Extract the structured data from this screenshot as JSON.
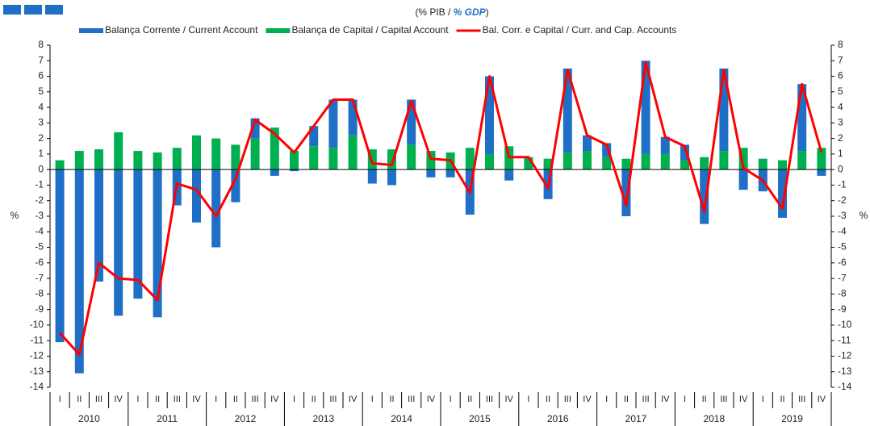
{
  "chart_data": {
    "type": "bar",
    "stacked": true,
    "title": [
      "(% PIB / ",
      "% GDP",
      ")"
    ],
    "ylabel": "%",
    "y2label": "%",
    "categories": [
      "I",
      "II",
      "III",
      "IV",
      "I",
      "II",
      "III",
      "IV",
      "I",
      "II",
      "III",
      "IV",
      "I",
      "II",
      "III",
      "IV",
      "I",
      "II",
      "III",
      "IV",
      "I",
      "II",
      "III",
      "IV",
      "I",
      "II",
      "III",
      "IV",
      "I",
      "II",
      "III",
      "IV",
      "I",
      "II",
      "III",
      "IV",
      "I",
      "II",
      "III",
      "IV"
    ],
    "years": [
      "2010",
      "2011",
      "2012",
      "2013",
      "2014",
      "2015",
      "2016",
      "2017",
      "2018",
      "2019"
    ],
    "series": [
      {
        "name": "Balança Corrente / Current Account",
        "type": "bar",
        "color": "#1f6fc6",
        "values": [
          -11.1,
          -13.1,
          -7.2,
          -9.4,
          -8.3,
          -9.5,
          -2.3,
          -3.4,
          -5.0,
          -2.1,
          1.3,
          -0.4,
          -0.1,
          1.3,
          3.1,
          2.3,
          -0.9,
          -1.0,
          2.9,
          -0.5,
          -0.5,
          -2.9,
          5.0,
          -0.7,
          0.0,
          -1.9,
          5.4,
          1.0,
          0.9,
          -3.0,
          6.0,
          1.1,
          1.0,
          -3.5,
          5.3,
          -1.3,
          -1.4,
          -3.1,
          4.3,
          -0.4
        ]
      },
      {
        "name": "Balança de Capital / Capital Account",
        "type": "bar",
        "color": "#00b050",
        "values": [
          0.6,
          1.2,
          1.3,
          2.4,
          1.2,
          1.1,
          1.4,
          2.2,
          2.0,
          1.6,
          2.0,
          2.7,
          1.2,
          1.5,
          1.4,
          2.2,
          1.3,
          1.3,
          1.6,
          1.2,
          1.1,
          1.4,
          1.0,
          1.5,
          0.8,
          0.7,
          1.1,
          1.2,
          0.8,
          0.7,
          1.0,
          1.0,
          0.6,
          0.8,
          1.2,
          1.4,
          0.7,
          0.6,
          1.2,
          1.4
        ]
      },
      {
        "name": "Bal. Corr. e Capital / Curr. and Cap. Accounts",
        "type": "line",
        "color": "#ff0000",
        "values": [
          -10.5,
          -11.9,
          -6.0,
          -7.0,
          -7.1,
          -8.4,
          -0.9,
          -1.3,
          -3.0,
          -0.6,
          3.2,
          2.3,
          1.1,
          2.8,
          4.5,
          4.5,
          0.4,
          0.3,
          4.4,
          0.7,
          0.6,
          -1.5,
          6.0,
          0.8,
          0.8,
          -1.2,
          6.4,
          2.2,
          1.6,
          -2.3,
          6.9,
          2.1,
          1.5,
          -2.7,
          6.4,
          0.1,
          -0.7,
          -2.5,
          5.5,
          1.1
        ]
      }
    ],
    "ylim": [
      -14,
      8
    ],
    "yticks": [
      -14,
      -13,
      -12,
      -11,
      -10,
      -9,
      -8,
      -7,
      -6,
      -5,
      -4,
      -3,
      -2,
      -1,
      0,
      1,
      2,
      3,
      4,
      5,
      6,
      7,
      8
    ],
    "y2lim": [
      -14,
      8
    ],
    "y2ticks": [
      -14,
      -13,
      -12,
      -11,
      -10,
      -9,
      -8,
      -7,
      -6,
      -5,
      -4,
      -3,
      -2,
      -1,
      0,
      1,
      2,
      3,
      4,
      5,
      6,
      7,
      8
    ]
  }
}
